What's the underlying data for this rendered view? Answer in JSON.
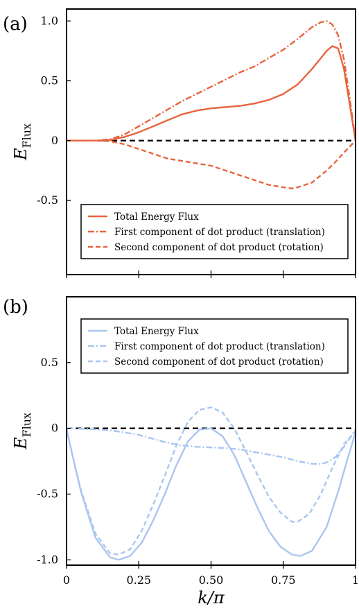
{
  "chart_data": [
    {
      "panel_label": "(a)",
      "type": "line",
      "xlabel_main": "",
      "ylabel_main": "E",
      "ylabel_sub": "Flux",
      "xlim": [
        0,
        1
      ],
      "ylim": [
        -1.12,
        1.1
      ],
      "yticks": [
        1.0,
        0.5,
        0,
        -0.5
      ],
      "ytick_labels": [
        "1.0",
        "0.5",
        "0",
        "-0.5"
      ],
      "xticks": [
        0,
        0.25,
        0.5,
        0.75,
        1
      ],
      "xtick_labels": [
        "",
        "",
        "",
        "",
        ""
      ],
      "grid": false,
      "legend_position": "bottom-right",
      "reference_line": {
        "y": 0,
        "style": "dashed",
        "color": "#000000"
      },
      "series": [
        {
          "name": "Total Energy Flux",
          "style": "solid",
          "color": "#e8643c",
          "x": [
            0,
            0.05,
            0.1,
            0.15,
            0.2,
            0.25,
            0.3,
            0.35,
            0.4,
            0.45,
            0.5,
            0.55,
            0.6,
            0.65,
            0.7,
            0.75,
            0.8,
            0.85,
            0.88,
            0.9,
            0.92,
            0.94,
            0.96,
            0.98,
            1.0
          ],
          "y": [
            0,
            0,
            0,
            0.005,
            0.03,
            0.07,
            0.12,
            0.17,
            0.22,
            0.25,
            0.27,
            0.28,
            0.29,
            0.31,
            0.34,
            0.39,
            0.47,
            0.6,
            0.69,
            0.75,
            0.79,
            0.77,
            0.6,
            0.3,
            0
          ]
        },
        {
          "name": "First component of dot product (translation)",
          "style": "dashdot",
          "color": "#e8643c",
          "x": [
            0,
            0.05,
            0.1,
            0.15,
            0.2,
            0.25,
            0.3,
            0.35,
            0.4,
            0.45,
            0.5,
            0.55,
            0.6,
            0.65,
            0.7,
            0.75,
            0.8,
            0.85,
            0.88,
            0.9,
            0.92,
            0.94,
            0.96,
            0.98,
            1.0
          ],
          "y": [
            0,
            0,
            0,
            0.01,
            0.05,
            0.12,
            0.19,
            0.26,
            0.33,
            0.39,
            0.45,
            0.51,
            0.57,
            0.62,
            0.69,
            0.76,
            0.85,
            0.95,
            0.99,
            1.0,
            0.97,
            0.88,
            0.68,
            0.35,
            0
          ]
        },
        {
          "name": "Second component of dot product (rotation)",
          "style": "dashed",
          "color": "#e8643c",
          "x": [
            0,
            0.05,
            0.1,
            0.15,
            0.2,
            0.25,
            0.3,
            0.35,
            0.4,
            0.45,
            0.5,
            0.55,
            0.6,
            0.65,
            0.7,
            0.75,
            0.78,
            0.8,
            0.85,
            0.9,
            0.93,
            0.96,
            0.98,
            1.0
          ],
          "y": [
            0,
            0,
            0,
            -0.005,
            -0.03,
            -0.07,
            -0.11,
            -0.15,
            -0.17,
            -0.19,
            -0.21,
            -0.25,
            -0.29,
            -0.33,
            -0.37,
            -0.39,
            -0.4,
            -0.39,
            -0.35,
            -0.25,
            -0.18,
            -0.1,
            -0.05,
            0
          ]
        }
      ]
    },
    {
      "panel_label": "(b)",
      "type": "line",
      "xlabel_main": "k",
      "xlabel_rest": "/π",
      "ylabel_main": "E",
      "ylabel_sub": "Flux",
      "xlim": [
        0,
        1
      ],
      "ylim": [
        -1.04,
        1.0
      ],
      "yticks": [
        0.5,
        0,
        -0.5,
        -1.0
      ],
      "ytick_labels": [
        "0.5",
        "0",
        "-0.5",
        "-1.0"
      ],
      "xticks": [
        0,
        0.25,
        0.5,
        0.75,
        1
      ],
      "xtick_labels": [
        "0",
        "0.25",
        "0.50",
        "0.75",
        "1"
      ],
      "grid": false,
      "legend_position": "top-right",
      "reference_line": {
        "y": 0,
        "style": "dashed",
        "color": "#000000"
      },
      "series": [
        {
          "name": "Total Energy Flux",
          "style": "solid",
          "color": "#a9c6f0",
          "x": [
            0,
            0.02,
            0.05,
            0.1,
            0.15,
            0.18,
            0.22,
            0.26,
            0.3,
            0.34,
            0.38,
            0.42,
            0.46,
            0.5,
            0.54,
            0.58,
            0.62,
            0.66,
            0.7,
            0.74,
            0.78,
            0.81,
            0.85,
            0.9,
            0.94,
            0.97,
            1.0
          ],
          "y": [
            0,
            -0.2,
            -0.48,
            -0.83,
            -0.98,
            -1.0,
            -0.97,
            -0.87,
            -0.7,
            -0.5,
            -0.28,
            -0.1,
            -0.01,
            0,
            -0.06,
            -0.2,
            -0.4,
            -0.6,
            -0.78,
            -0.9,
            -0.96,
            -0.97,
            -0.93,
            -0.75,
            -0.48,
            -0.25,
            -0.03
          ]
        },
        {
          "name": "First component of dot product (translation)",
          "style": "dashdot",
          "color": "#a9c6f0",
          "x": [
            0,
            0.05,
            0.1,
            0.15,
            0.2,
            0.25,
            0.3,
            0.35,
            0.4,
            0.45,
            0.5,
            0.55,
            0.6,
            0.65,
            0.7,
            0.75,
            0.8,
            0.85,
            0.88,
            0.9,
            0.93,
            0.96,
            1.0
          ],
          "y": [
            0,
            -0.003,
            -0.008,
            -0.015,
            -0.03,
            -0.05,
            -0.08,
            -0.11,
            -0.13,
            -0.14,
            -0.145,
            -0.15,
            -0.16,
            -0.18,
            -0.2,
            -0.22,
            -0.25,
            -0.27,
            -0.27,
            -0.26,
            -0.22,
            -0.14,
            -0.01
          ]
        },
        {
          "name": "Second component of dot product (rotation)",
          "style": "dashed",
          "color": "#a9c6f0",
          "x": [
            0,
            0.02,
            0.05,
            0.1,
            0.15,
            0.18,
            0.22,
            0.26,
            0.3,
            0.34,
            0.38,
            0.42,
            0.46,
            0.5,
            0.54,
            0.58,
            0.62,
            0.66,
            0.7,
            0.74,
            0.78,
            0.8,
            0.84,
            0.88,
            0.92,
            0.96,
            1.0
          ],
          "y": [
            0,
            -0.2,
            -0.47,
            -0.8,
            -0.95,
            -0.96,
            -0.92,
            -0.78,
            -0.58,
            -0.36,
            -0.13,
            0.05,
            0.14,
            0.16,
            0.12,
            0.0,
            -0.17,
            -0.35,
            -0.52,
            -0.64,
            -0.71,
            -0.71,
            -0.65,
            -0.5,
            -0.3,
            -0.12,
            -0.02
          ]
        }
      ]
    }
  ]
}
